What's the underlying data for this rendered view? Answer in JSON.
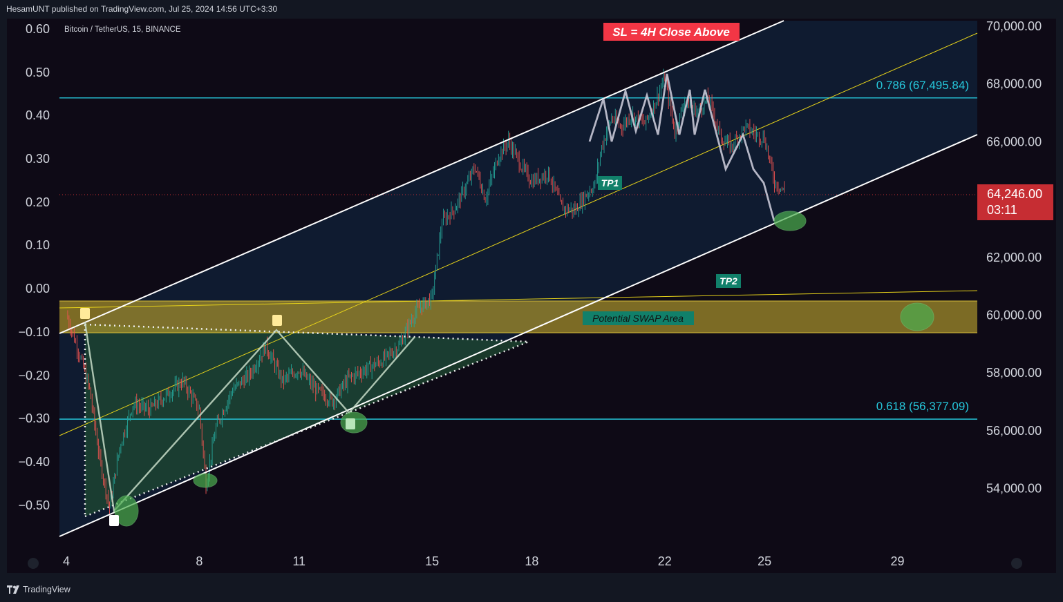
{
  "header": {
    "published_text": "HesamUNT published on TradingView.com, Jul 25, 2024 14:56 UTC+3:30"
  },
  "footer": {
    "brand": "TradingView"
  },
  "colors": {
    "background": "#0e0a16",
    "channel_fill": "#0f1b30",
    "cyan_level": "#26c6da",
    "yellow_line": "#e6d21a",
    "swap_zone": "#a8922b",
    "triangle_fill": "#1f4a32",
    "tp_badge": "#11806a",
    "sl_badge": "#f23645",
    "price_badge": "#c62d33",
    "candle_up": "#26a69a",
    "candle_down": "#ef5350"
  },
  "chart_data": {
    "type": "candlestick",
    "title": "Bitcoin / TetherUS, 15, BINANCE",
    "symbol": "Bitcoin / TetherUS",
    "interval": "15",
    "exchange": "BINANCE",
    "right_axis": {
      "labels": [
        "70,000.00",
        "68,000.00",
        "66,000.00",
        "62,000.00",
        "60,000.00",
        "58,000.00",
        "56,000.00",
        "54,000.00"
      ],
      "range": [
        52000,
        70300
      ]
    },
    "left_axis": {
      "labels": [
        "0.60",
        "0.50",
        "0.40",
        "0.30",
        "0.20",
        "0.10",
        "0.00",
        "−0.10",
        "−0.20",
        "−0.30",
        "−0.40",
        "−0.50"
      ]
    },
    "x_axis": {
      "labels": [
        "4",
        "8",
        "11",
        "15",
        "18",
        "22",
        "25",
        "29"
      ]
    },
    "current_price": {
      "value": "64,246.00",
      "countdown": "03:11"
    },
    "fib_levels": [
      {
        "label": "0.786 (67,495.84)",
        "price": 67495.84
      },
      {
        "label": "0.618 (56,377.09)",
        "price": 56377.09
      }
    ],
    "annotations": {
      "sl": "SL = 4H Close Above",
      "tp1": "TP1",
      "tp2": "TP2",
      "zone": "Potential SWAP Area"
    },
    "price_path": [
      [
        4.0,
        60000
      ],
      [
        4.4,
        58600
      ],
      [
        4.7,
        57400
      ],
      [
        5.0,
        55000
      ],
      [
        5.3,
        53300
      ],
      [
        5.6,
        55400
      ],
      [
        6.0,
        56900
      ],
      [
        6.5,
        56700
      ],
      [
        7.0,
        57200
      ],
      [
        7.5,
        57700
      ],
      [
        8.0,
        56700
      ],
      [
        8.2,
        54100
      ],
      [
        8.5,
        56100
      ],
      [
        9.0,
        57400
      ],
      [
        9.5,
        57900
      ],
      [
        10.0,
        58900
      ],
      [
        10.5,
        57700
      ],
      [
        11.0,
        58100
      ],
      [
        11.5,
        57400
      ],
      [
        12.0,
        57000
      ],
      [
        12.5,
        57800
      ],
      [
        13.0,
        58100
      ],
      [
        13.5,
        58400
      ],
      [
        14.0,
        58900
      ],
      [
        14.5,
        60100
      ],
      [
        15.0,
        60600
      ],
      [
        15.3,
        63200
      ],
      [
        15.7,
        63700
      ],
      [
        16.0,
        64400
      ],
      [
        16.3,
        65100
      ],
      [
        16.6,
        64000
      ],
      [
        17.0,
        65500
      ],
      [
        17.3,
        66000
      ],
      [
        17.7,
        65100
      ],
      [
        18.0,
        64600
      ],
      [
        18.5,
        64900
      ],
      [
        18.9,
        63700
      ],
      [
        19.3,
        63600
      ],
      [
        19.6,
        64100
      ],
      [
        19.9,
        64500
      ],
      [
        20.1,
        65800
      ],
      [
        20.4,
        66800
      ],
      [
        20.7,
        66500
      ],
      [
        21.0,
        66900
      ],
      [
        21.4,
        66600
      ],
      [
        21.7,
        67300
      ],
      [
        22.0,
        68200
      ],
      [
        22.3,
        66300
      ],
      [
        22.6,
        67400
      ],
      [
        23.0,
        67000
      ],
      [
        23.3,
        67500
      ],
      [
        23.7,
        66100
      ],
      [
        24.0,
        65800
      ],
      [
        24.4,
        66500
      ],
      [
        24.8,
        66200
      ],
      [
        25.0,
        66100
      ],
      [
        25.3,
        64600
      ],
      [
        25.6,
        64246
      ]
    ]
  }
}
